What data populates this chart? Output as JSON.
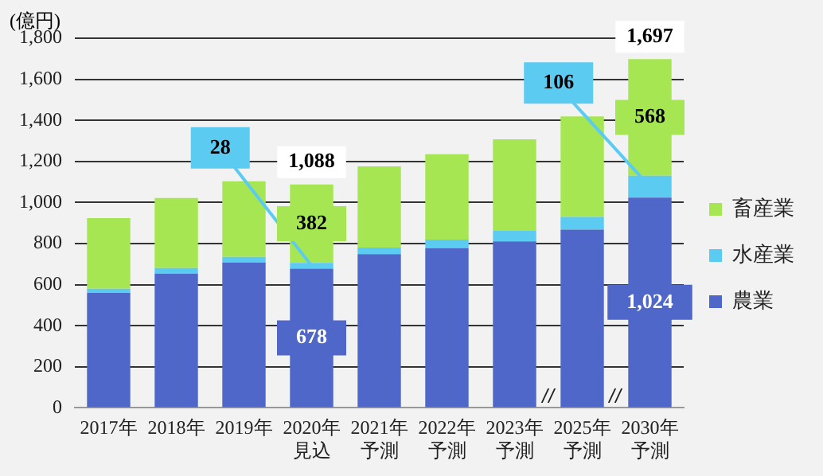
{
  "chart_data": {
    "type": "bar",
    "stacked": true,
    "ylabel": "(億円)",
    "categories": [
      "2017年",
      "2018年",
      "2019年",
      "2020年見込",
      "2021年予測",
      "2022年予測",
      "2023年予測",
      "2025年予測",
      "2030年予測"
    ],
    "series": [
      {
        "name": "農業",
        "color": "#4f67c8",
        "values": [
          560,
          654,
          708,
          678,
          749,
          778,
          811,
          868,
          1024
        ],
        "value_labels": [
          null,
          null,
          null,
          "678",
          null,
          null,
          null,
          null,
          "1,024"
        ]
      },
      {
        "name": "水産業",
        "color": "#5ccbf2",
        "values": [
          20,
          27,
          27,
          28,
          32,
          41,
          51,
          62,
          106
        ],
        "value_labels": [
          null,
          null,
          null,
          "28",
          null,
          null,
          null,
          null,
          "106"
        ]
      },
      {
        "name": "畜産業",
        "color": "#a6e653",
        "values": [
          344,
          341,
          368,
          382,
          395,
          416,
          446,
          489,
          568
        ],
        "value_labels": [
          null,
          null,
          null,
          "382",
          null,
          null,
          null,
          null,
          "568"
        ]
      }
    ],
    "totals": [
      null,
      null,
      null,
      "1,088",
      null,
      null,
      null,
      null,
      "1,697"
    ],
    "ylim": [
      0,
      1800
    ],
    "yticks": [
      0,
      200,
      400,
      600,
      800,
      {
        "value": 1000,
        "label": "1,000"
      },
      {
        "value": 1200,
        "label": "1,200"
      },
      {
        "value": 1400,
        "label": "1,400"
      },
      {
        "value": 1600,
        "label": "1,600"
      },
      {
        "value": 1800,
        "label": "1,800"
      }
    ],
    "grid": "y",
    "legend": "right"
  }
}
